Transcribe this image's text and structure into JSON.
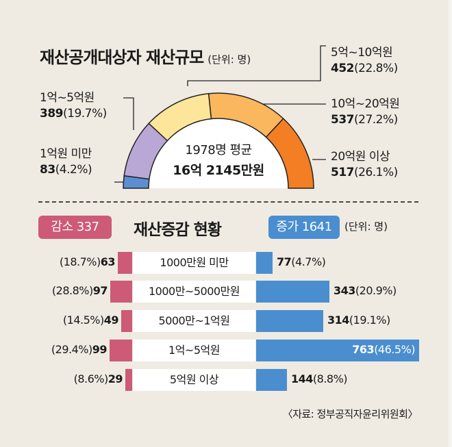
{
  "chart_data": [
    {
      "type": "pie",
      "subtype": "half-donut",
      "title": "재산공개대상자 재산규모",
      "unit_note": "(단위: 명)",
      "center_label": {
        "line1": "1978명 평균",
        "line2": "16억 2145만원"
      },
      "categories": [
        "1억원 미만",
        "1억~5억원",
        "5억~10억원",
        "10억~20억원",
        "20억원 이상"
      ],
      "values": [
        83,
        389,
        452,
        537,
        517
      ],
      "value_labels": [
        "83",
        "389",
        "452",
        "537",
        "517"
      ],
      "percent_labels": [
        "(4.2%)",
        "(19.7%)",
        "(22.8%)",
        "(27.2%)",
        "(26.1%)"
      ],
      "colors": [
        "#5b8fd0",
        "#b9a8d6",
        "#fde59a",
        "#fbb75e",
        "#f37e24"
      ]
    },
    {
      "type": "bar",
      "subtype": "diverging-horizontal",
      "title": "재산증감 현황",
      "unit_note": "(단위: 명)",
      "decrease": {
        "label": "감소 337",
        "color": "#cd5a76"
      },
      "increase": {
        "label": "증가 1641",
        "color": "#4a8ed0"
      },
      "categories": [
        "1000만원 미만",
        "1000만~5000만원",
        "5000만~1억원",
        "1억~5억원",
        "5억원 이상"
      ],
      "series": [
        {
          "name": "감소",
          "values": [
            63,
            97,
            49,
            99,
            29
          ],
          "value_labels": [
            "63",
            "97",
            "49",
            "99",
            "29"
          ],
          "percent_labels": [
            "(18.7%)",
            "(28.8%)",
            "(14.5%)",
            "(29.4%)",
            "(8.6%)"
          ]
        },
        {
          "name": "증가",
          "values": [
            77,
            343,
            314,
            763,
            144
          ],
          "value_labels": [
            "77",
            "343",
            "314",
            "763",
            "144"
          ],
          "percent_labels": [
            "(4.7%)",
            "(20.9%)",
            "(19.1%)",
            "(46.5%)",
            "(8.8%)"
          ]
        }
      ]
    }
  ],
  "source": "〈자료: 정부공직자윤리위원회〉"
}
